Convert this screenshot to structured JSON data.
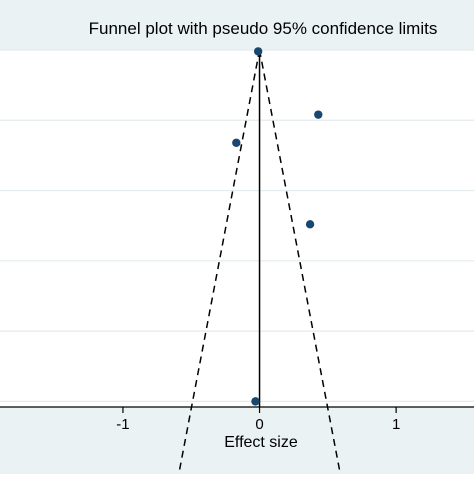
{
  "chart_data": {
    "type": "scatter",
    "title": "Funnel plot with pseudo 95% confidence limits",
    "xlabel": "Effect size",
    "ylabel": "",
    "x_ticks": [
      {
        "value": -1,
        "label": "-1"
      },
      {
        "value": 0,
        "label": "0"
      },
      {
        "value": 1,
        "label": "1"
      }
    ],
    "y_gridlines": [
      0,
      0.05,
      0.1,
      0.15,
      0.2,
      0.25
    ],
    "y_reversed": true,
    "xlim": [
      -1.9,
      1.57
    ],
    "ylim": [
      0,
      0.254
    ],
    "grid": true,
    "pooled_effect": 0.0,
    "confidence_limit_z": 1.96,
    "points": [
      {
        "x": -0.01,
        "y": 0.001
      },
      {
        "x": 0.43,
        "y": 0.046
      },
      {
        "x": -0.17,
        "y": 0.066
      },
      {
        "x": 0.37,
        "y": 0.124
      },
      {
        "x": -0.03,
        "y": 0.25
      }
    ],
    "colors": {
      "background_band": "#eaf2f3",
      "plot_background": "#ffffff",
      "grid": "#e4ebee",
      "points": "#1a476f",
      "lines": "#000000"
    }
  }
}
